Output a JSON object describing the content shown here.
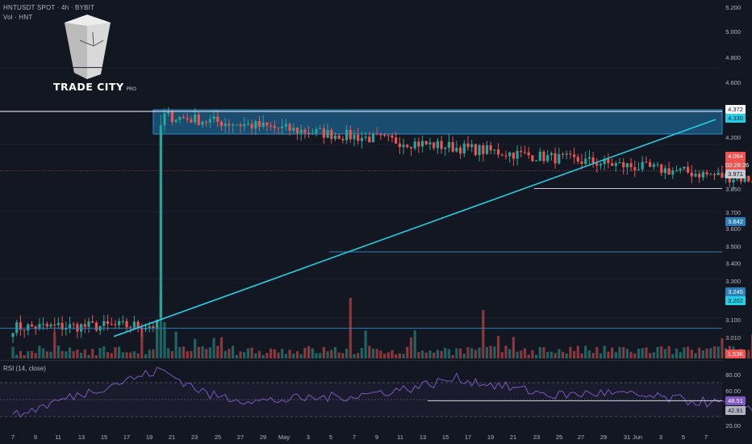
{
  "header": {
    "symbol_line": "HNTUSDT SPOT · 4h · BYBIT",
    "volume_line": "Vol · HNT"
  },
  "logo": {
    "brand": "TRADE CITY",
    "suffix": "PRO",
    "icon": "trade-city-logo-icon"
  },
  "rsi": {
    "label": "RSI (14, close)",
    "ticks": [
      "80.00",
      "60.00",
      "20.00"
    ],
    "levels": [
      70,
      50,
      30
    ],
    "value_tags": [
      "48.51",
      "42.91"
    ]
  },
  "price_axis": {
    "ticks": [
      "5.200",
      "5.000",
      "4.800",
      "4.600",
      "4.200",
      "3.850",
      "3.700",
      "3.600",
      "3.500",
      "3.400",
      "3.300",
      "3.100",
      "3.010"
    ],
    "tags": {
      "resistance_top": "4.372",
      "resistance_bottom": "4.330",
      "last_price": "4.064",
      "countdown": "03:28:26",
      "support_1": "3.971",
      "support_2": "3.642",
      "support_3": "3.245",
      "trendline_start": "3.202",
      "volume": "1.53K"
    }
  },
  "time_axis": {
    "ticks": [
      "7",
      "9",
      "11",
      "13",
      "15",
      "17",
      "19",
      "21",
      "23",
      "25",
      "27",
      "29",
      "May",
      "3",
      "5",
      "7",
      "9",
      "11",
      "13",
      "15",
      "17",
      "19",
      "21",
      "23",
      "25",
      "27",
      "29",
      "31",
      "Jun",
      "3",
      "5",
      "7"
    ]
  },
  "colors": {
    "background": "#131722",
    "up": "#26a69a",
    "down": "#ef5350",
    "trendline": "#22d1e8",
    "zone": "#1e5f8a",
    "horizontal_line": "#2d7fb8",
    "rsi_line": "#7e57c2",
    "last_price": "#ef5350"
  },
  "chart_data": [
    {
      "type": "candlestick",
      "title": "HNTUSDT SPOT · 4h · BYBIT",
      "ylim": [
        2.95,
        5.2
      ],
      "x_ticks": [
        "7",
        "9",
        "11",
        "13",
        "15",
        "17",
        "19",
        "21",
        "23",
        "25",
        "27",
        "29",
        "May",
        "3",
        "5",
        "7",
        "9",
        "11",
        "13",
        "15",
        "17",
        "19",
        "21",
        "23",
        "25",
        "27",
        "29",
        "31",
        "Jun",
        "3",
        "5",
        "7"
      ],
      "key_points": [
        {
          "x": "7",
          "y": 3.25
        },
        {
          "x": "13",
          "y": 3.26
        },
        {
          "x": "13",
          "y": 4.35
        },
        {
          "x": "14",
          "y": 3.55
        },
        {
          "x": "16",
          "y": 3.25
        },
        {
          "x": "19",
          "y": 3.45
        },
        {
          "x": "21",
          "y": 3.48
        },
        {
          "x": "23",
          "y": 3.75
        },
        {
          "x": "25",
          "y": 4.27
        },
        {
          "x": "26",
          "y": 4.35
        },
        {
          "x": "28",
          "y": 4.05
        },
        {
          "x": "May",
          "y": 3.88
        },
        {
          "x": "5",
          "y": 3.72
        },
        {
          "x": "7",
          "y": 3.7
        },
        {
          "x": "9",
          "y": 4.05
        },
        {
          "x": "11",
          "y": 4.15
        },
        {
          "x": "13",
          "y": 3.75
        },
        {
          "x": "15",
          "y": 4.2
        },
        {
          "x": "17",
          "y": 4.0
        },
        {
          "x": "19",
          "y": 3.92
        },
        {
          "x": "21",
          "y": 4.0
        },
        {
          "x": "23",
          "y": 4.25
        },
        {
          "x": "24",
          "y": 3.99
        },
        {
          "x": "25",
          "y": 4.2
        },
        {
          "x": "25",
          "y": 4.064
        }
      ],
      "resistance_zone": [
        4.33,
        4.372
      ],
      "horizontal_levels": [
        4.372,
        3.971,
        3.642,
        3.245
      ],
      "trendline": {
        "from": {
          "x": "16",
          "y": 3.202
        },
        "to": {
          "x": "Jun",
          "y": 4.33
        }
      },
      "last_price": 4.064
    },
    {
      "type": "bar",
      "title": "Vol · HNT",
      "last_value": "1.53K"
    },
    {
      "type": "line",
      "title": "RSI (14, close)",
      "ylim": [
        20,
        90
      ],
      "levels": [
        70,
        50,
        30
      ],
      "key_points": [
        {
          "x": "7",
          "y": 30
        },
        {
          "x": "9",
          "y": 50
        },
        {
          "x": "13",
          "y": 85
        },
        {
          "x": "15",
          "y": 55
        },
        {
          "x": "17",
          "y": 48
        },
        {
          "x": "21",
          "y": 55
        },
        {
          "x": "23",
          "y": 63
        },
        {
          "x": "25",
          "y": 75
        },
        {
          "x": "29",
          "y": 55
        },
        {
          "x": "May",
          "y": 58
        },
        {
          "x": "7",
          "y": 42
        },
        {
          "x": "11",
          "y": 60
        },
        {
          "x": "13",
          "y": 38
        },
        {
          "x": "17",
          "y": 55
        },
        {
          "x": "21",
          "y": 50
        },
        {
          "x": "23",
          "y": 72
        },
        {
          "x": "24",
          "y": 46
        },
        {
          "x": "25",
          "y": 63
        },
        {
          "x": "25",
          "y": 48.51
        }
      ],
      "last_values": [
        "48.51",
        "42.91"
      ]
    }
  ]
}
